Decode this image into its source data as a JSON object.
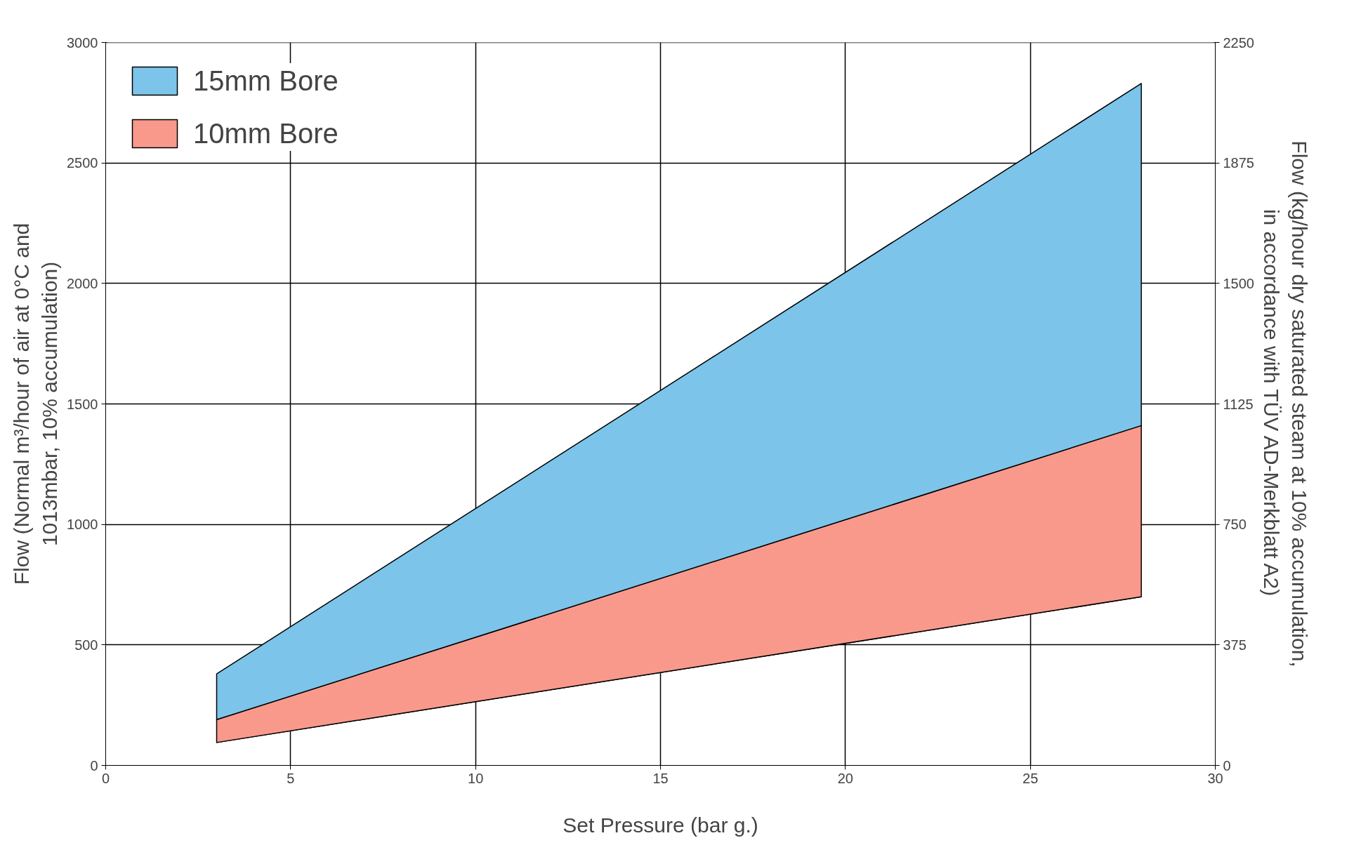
{
  "chart_data": {
    "type": "area",
    "xlabel": "Set Pressure (bar g.)",
    "ylabel": "Flow (Normal m³/hour of air at 0°C and\n1013mbar, 10% accumulation)",
    "y2label": "Flow (kg/hour dry saturated steam at 10% accumulation,\nin accordance with TÜV AD-Merkblatt A2)",
    "xlim": [
      0,
      30
    ],
    "xticks": [
      0,
      5,
      10,
      15,
      20,
      25,
      30
    ],
    "ylim": [
      0,
      3000
    ],
    "yticks": [
      0,
      500,
      1000,
      1500,
      2000,
      2500,
      3000
    ],
    "y2lim": [
      0,
      2250
    ],
    "y2ticks": [
      0,
      375,
      750,
      1125,
      1500,
      1875,
      2250
    ],
    "grid": true,
    "legend": "top left",
    "x": [
      3,
      28
    ],
    "series": [
      {
        "type": "line",
        "color": "#000000",
        "values": [
          95,
          700
        ]
      },
      {
        "name": "10mm Bore",
        "color": "#f8998c",
        "values": [
          190,
          1410
        ]
      },
      {
        "name": "15mm Bore",
        "color": "#7cc4ea",
        "values": [
          380,
          2830
        ]
      }
    ]
  }
}
